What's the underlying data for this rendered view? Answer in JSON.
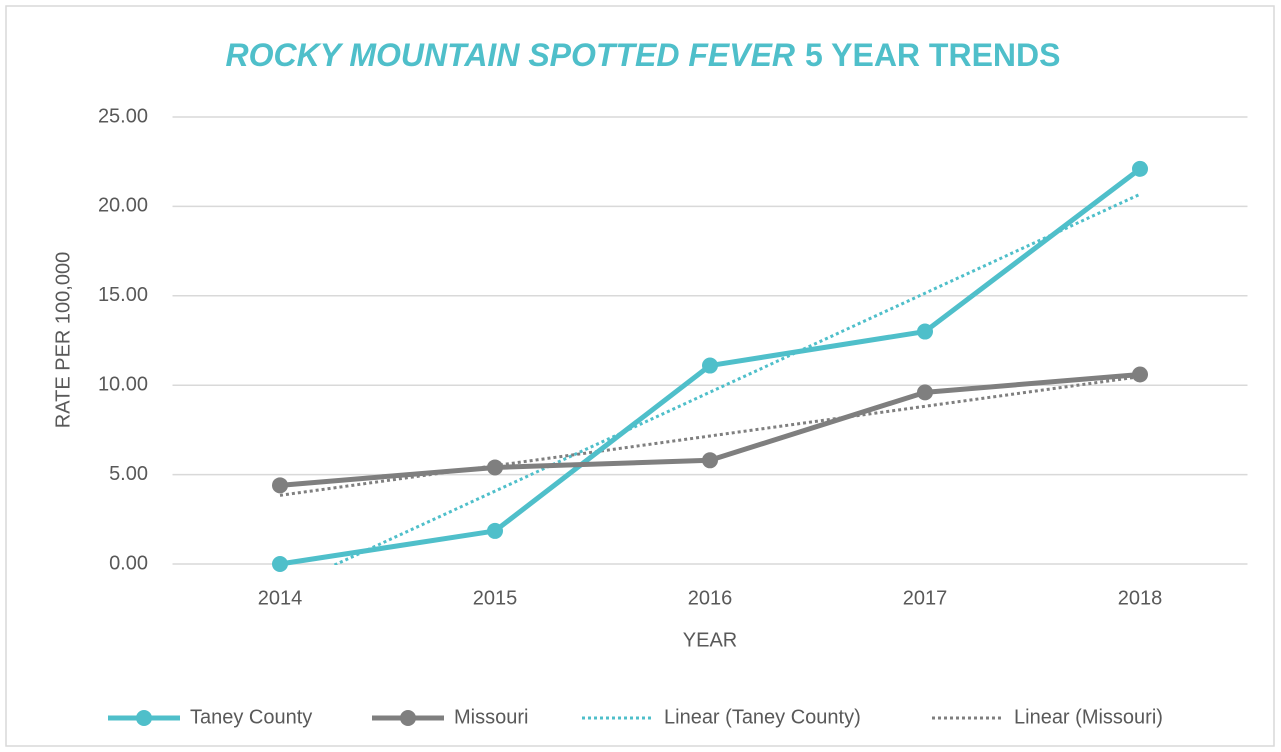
{
  "chart_data": {
    "type": "line",
    "title_parts": [
      {
        "text": "ROCKY MOUNTAIN SPOTTED FEVER",
        "italic": true
      },
      {
        "text": "5 YEAR TRENDS",
        "italic": false
      }
    ],
    "title_color": "#4fbfca",
    "x_label": "YEAR",
    "y_label": "RATE PER 100,000",
    "categories": [
      "2014",
      "2015",
      "2016",
      "2017",
      "2018"
    ],
    "series": [
      {
        "name": "Taney County",
        "color": "#4fbfca",
        "values": [
          0,
          1.85,
          11.1,
          13.0,
          22.1
        ],
        "trendline": {
          "name": "Linear (Taney County)",
          "type": "linear",
          "style": "dotted"
        }
      },
      {
        "name": "Missouri",
        "color": "#7f7f7f",
        "values": [
          4.4,
          5.4,
          5.8,
          9.6,
          10.6
        ],
        "trendline": {
          "name": "Linear (Missouri)",
          "type": "linear",
          "style": "dotted"
        }
      }
    ],
    "ylim": [
      0,
      25
    ],
    "yticks": [
      {
        "value": 0,
        "label": "0.00"
      },
      {
        "value": 5,
        "label": "5.00"
      },
      {
        "value": 10,
        "label": "10.00"
      },
      {
        "value": 15,
        "label": "15.00"
      },
      {
        "value": 20,
        "label": "20.00"
      },
      {
        "value": 25,
        "label": "25.00"
      }
    ],
    "grid": true,
    "legend": "bottom"
  }
}
